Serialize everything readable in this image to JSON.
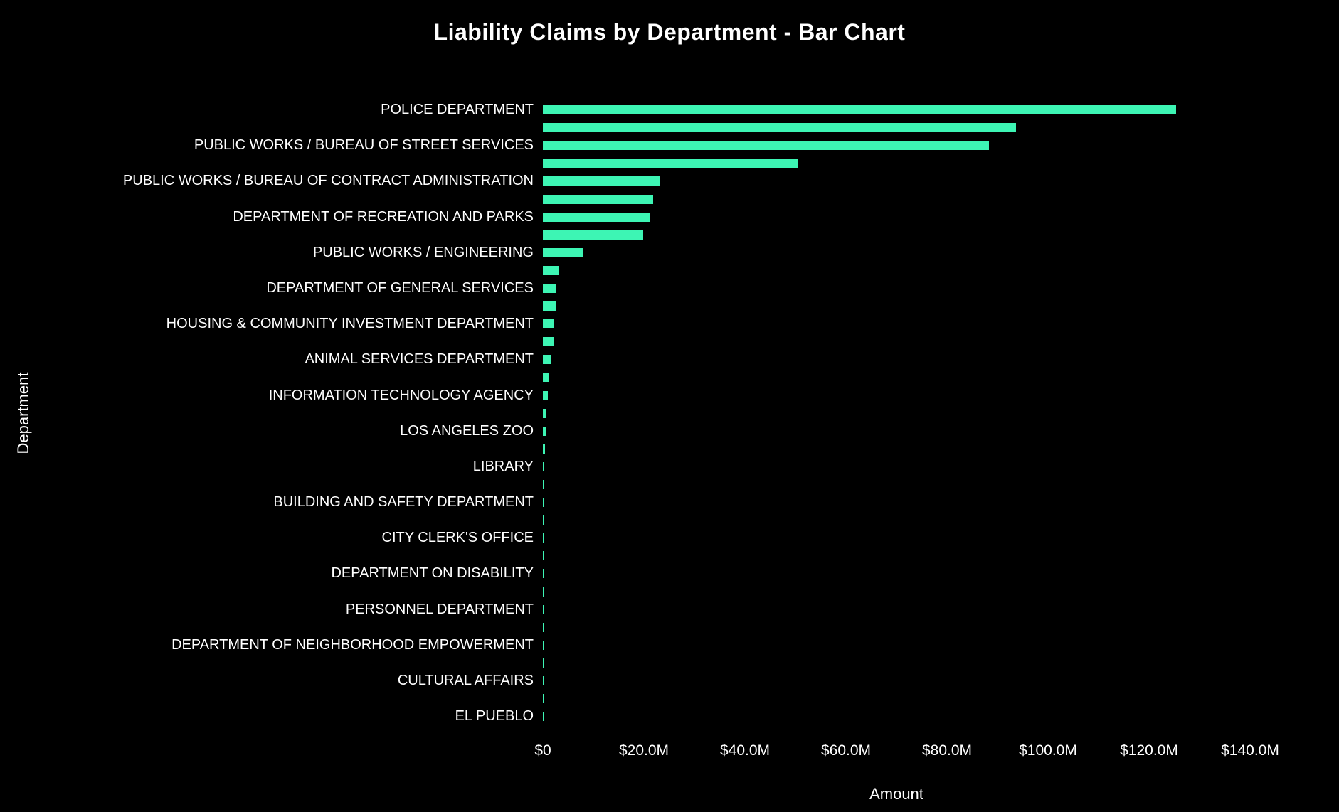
{
  "chart_data": {
    "type": "bar",
    "orientation": "horizontal",
    "title": "Liability Claims by Department - Bar Chart",
    "xlabel": "Amount",
    "ylabel": "Department",
    "x_ticks": [
      "$0",
      "$20.0M",
      "$40.0M",
      "$60.0M",
      "$80.0M",
      "$100.0M",
      "$120.0M",
      "$140.0M"
    ],
    "x_tick_values_m": [
      0,
      20,
      40,
      60,
      80,
      100,
      120,
      140
    ],
    "xlim_m": [
      0,
      140
    ],
    "grid": false,
    "legend": false,
    "background_color": "#000000",
    "text_color": "#ffffff",
    "bar_color": "#3df5b4",
    "bars": [
      {
        "label": "POLICE DEPARTMENT",
        "value_m": 125.4
      },
      {
        "label": "",
        "value_m": 93.7
      },
      {
        "label": "PUBLIC WORKS / BUREAU OF STREET SERVICES",
        "value_m": 88.3
      },
      {
        "label": "",
        "value_m": 50.6
      },
      {
        "label": "PUBLIC WORKS / BUREAU OF CONTRACT ADMINISTRATION",
        "value_m": 23.2
      },
      {
        "label": "",
        "value_m": 21.8
      },
      {
        "label": "DEPARTMENT OF RECREATION AND PARKS",
        "value_m": 21.3
      },
      {
        "label": "",
        "value_m": 19.9
      },
      {
        "label": "PUBLIC WORKS / ENGINEERING",
        "value_m": 7.9
      },
      {
        "label": "",
        "value_m": 3.1
      },
      {
        "label": "DEPARTMENT OF GENERAL SERVICES",
        "value_m": 2.7
      },
      {
        "label": "",
        "value_m": 2.65
      },
      {
        "label": "HOUSING & COMMUNITY INVESTMENT DEPARTMENT",
        "value_m": 2.3
      },
      {
        "label": "",
        "value_m": 2.25
      },
      {
        "label": "ANIMAL SERVICES DEPARTMENT",
        "value_m": 1.55
      },
      {
        "label": "",
        "value_m": 1.3
      },
      {
        "label": "INFORMATION TECHNOLOGY AGENCY",
        "value_m": 1.0
      },
      {
        "label": "",
        "value_m": 0.6
      },
      {
        "label": "LOS ANGELES ZOO",
        "value_m": 0.55
      },
      {
        "label": "",
        "value_m": 0.45
      },
      {
        "label": "LIBRARY",
        "value_m": 0.35
      },
      {
        "label": "",
        "value_m": 0.3
      },
      {
        "label": "BUILDING AND SAFETY DEPARTMENT",
        "value_m": 0.25
      },
      {
        "label": "",
        "value_m": 0.2
      },
      {
        "label": "CITY CLERK'S OFFICE",
        "value_m": 0.15
      },
      {
        "label": "",
        "value_m": 0.13
      },
      {
        "label": "DEPARTMENT ON DISABILITY",
        "value_m": 0.12
      },
      {
        "label": "",
        "value_m": 0.1
      },
      {
        "label": "PERSONNEL DEPARTMENT",
        "value_m": 0.09
      },
      {
        "label": "",
        "value_m": 0.08
      },
      {
        "label": "DEPARTMENT OF NEIGHBORHOOD EMPOWERMENT",
        "value_m": 0.07
      },
      {
        "label": "",
        "value_m": 0.06
      },
      {
        "label": "CULTURAL AFFAIRS",
        "value_m": 0.06
      },
      {
        "label": "",
        "value_m": 0.05
      },
      {
        "label": "EL PUEBLO",
        "value_m": 0.05
      }
    ]
  }
}
